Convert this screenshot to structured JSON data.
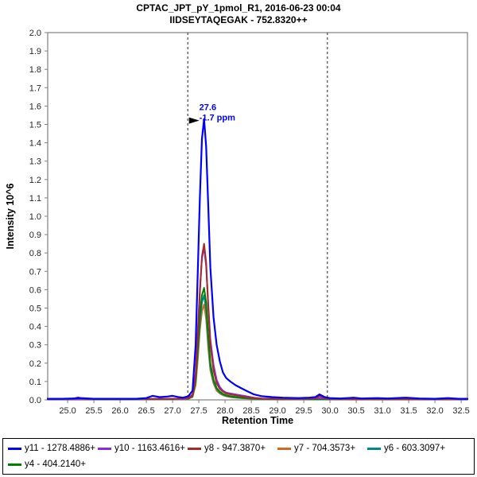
{
  "title": {
    "line1": "CPTAC_JPT_pY_1pmol_R1, 2016-06-23 00:04",
    "line2": "IIDSEYTAQEGAK - 752.8320++"
  },
  "chart_data": {
    "type": "line",
    "title": "CPTAC_JPT_pY_1pmol_R1, 2016-06-23 00:04 / IIDSEYTAQEGAK - 752.8320++",
    "xlabel": "Retention Time",
    "ylabel": "Intensity 10^6",
    "xlim": [
      24.62,
      32.62
    ],
    "ylim": [
      0,
      2.0
    ],
    "x_ticks": [
      25.0,
      25.5,
      26.0,
      26.5,
      27.0,
      27.5,
      28.0,
      28.5,
      29.0,
      29.5,
      30.0,
      30.5,
      31.0,
      31.5,
      32.0,
      32.5
    ],
    "y_ticks": [
      0.0,
      0.1,
      0.2,
      0.3,
      0.4,
      0.5,
      0.6,
      0.7,
      0.8,
      0.9,
      1.0,
      1.1,
      1.2,
      1.3,
      1.4,
      1.5,
      1.6,
      1.7,
      1.8,
      1.9,
      2.0
    ],
    "grid": false,
    "legend_position": "bottom",
    "boundaries": [
      27.29,
      29.95
    ],
    "boundary_color": "#444444",
    "annotation": {
      "rt_label": "27.6",
      "ppm_label": "-1.7 ppm",
      "x": 27.6,
      "y": 1.53,
      "color": "#0000FF",
      "arrow_color": "#000000"
    },
    "draw_order": [
      3,
      4,
      5,
      1,
      2,
      0
    ],
    "series": [
      {
        "id": "y11",
        "label": "y11 - 1278.4886+",
        "color": "#0000FF",
        "width": 2.2,
        "points": [
          [
            24.62,
            0.006
          ],
          [
            24.9,
            0.006
          ],
          [
            25.1,
            0.008
          ],
          [
            25.25,
            0.01
          ],
          [
            25.5,
            0.006
          ],
          [
            26.0,
            0.006
          ],
          [
            26.3,
            0.006
          ],
          [
            26.5,
            0.01
          ],
          [
            26.62,
            0.022
          ],
          [
            26.75,
            0.015
          ],
          [
            26.9,
            0.018
          ],
          [
            27.0,
            0.022
          ],
          [
            27.1,
            0.016
          ],
          [
            27.2,
            0.012
          ],
          [
            27.3,
            0.02
          ],
          [
            27.38,
            0.05
          ],
          [
            27.44,
            0.3
          ],
          [
            27.48,
            0.7
          ],
          [
            27.52,
            1.1
          ],
          [
            27.56,
            1.42
          ],
          [
            27.6,
            1.53
          ],
          [
            27.64,
            1.38
          ],
          [
            27.68,
            1.05
          ],
          [
            27.72,
            0.72
          ],
          [
            27.78,
            0.45
          ],
          [
            27.84,
            0.3
          ],
          [
            27.9,
            0.21
          ],
          [
            27.96,
            0.15
          ],
          [
            28.02,
            0.12
          ],
          [
            28.1,
            0.1
          ],
          [
            28.2,
            0.08
          ],
          [
            28.3,
            0.065
          ],
          [
            28.4,
            0.05
          ],
          [
            28.55,
            0.03
          ],
          [
            28.7,
            0.02
          ],
          [
            28.9,
            0.015
          ],
          [
            29.1,
            0.012
          ],
          [
            29.4,
            0.01
          ],
          [
            29.6,
            0.012
          ],
          [
            29.72,
            0.015
          ],
          [
            29.8,
            0.03
          ],
          [
            29.9,
            0.015
          ],
          [
            30.0,
            0.01
          ],
          [
            30.2,
            0.008
          ],
          [
            30.45,
            0.012
          ],
          [
            30.6,
            0.008
          ],
          [
            30.9,
            0.01
          ],
          [
            31.1,
            0.008
          ],
          [
            31.45,
            0.012
          ],
          [
            31.7,
            0.008
          ],
          [
            32.0,
            0.006
          ],
          [
            32.25,
            0.01
          ],
          [
            32.45,
            0.006
          ],
          [
            32.62,
            0.006
          ]
        ]
      },
      {
        "id": "y10",
        "label": "y10 - 1163.4616+",
        "color": "#8A2BE2",
        "width": 2,
        "points": [
          [
            24.62,
            0.004
          ],
          [
            25.5,
            0.004
          ],
          [
            26.5,
            0.005
          ],
          [
            27.0,
            0.006
          ],
          [
            27.2,
            0.005
          ],
          [
            27.3,
            0.01
          ],
          [
            27.38,
            0.03
          ],
          [
            27.44,
            0.15
          ],
          [
            27.48,
            0.38
          ],
          [
            27.52,
            0.6
          ],
          [
            27.56,
            0.77
          ],
          [
            27.6,
            0.83
          ],
          [
            27.64,
            0.73
          ],
          [
            27.68,
            0.52
          ],
          [
            27.72,
            0.33
          ],
          [
            27.78,
            0.19
          ],
          [
            27.84,
            0.11
          ],
          [
            27.9,
            0.07
          ],
          [
            27.96,
            0.05
          ],
          [
            28.02,
            0.04
          ],
          [
            28.1,
            0.035
          ],
          [
            28.2,
            0.03
          ],
          [
            28.3,
            0.025
          ],
          [
            28.4,
            0.02
          ],
          [
            28.55,
            0.012
          ],
          [
            28.7,
            0.008
          ],
          [
            29.0,
            0.006
          ],
          [
            29.5,
            0.005
          ],
          [
            29.8,
            0.01
          ],
          [
            30.0,
            0.005
          ],
          [
            30.5,
            0.004
          ],
          [
            31.0,
            0.005
          ],
          [
            31.5,
            0.004
          ],
          [
            32.0,
            0.004
          ],
          [
            32.62,
            0.004
          ]
        ]
      },
      {
        "id": "y8",
        "label": "y8 - 947.3870+",
        "color": "#A52A2A",
        "width": 2,
        "points": [
          [
            24.62,
            0.004
          ],
          [
            25.1,
            0.006
          ],
          [
            25.2,
            0.014
          ],
          [
            25.3,
            0.005
          ],
          [
            26.0,
            0.004
          ],
          [
            26.5,
            0.005
          ],
          [
            27.0,
            0.006
          ],
          [
            27.3,
            0.008
          ],
          [
            27.38,
            0.025
          ],
          [
            27.44,
            0.13
          ],
          [
            27.48,
            0.35
          ],
          [
            27.52,
            0.58
          ],
          [
            27.56,
            0.78
          ],
          [
            27.6,
            0.85
          ],
          [
            27.64,
            0.75
          ],
          [
            27.68,
            0.5
          ],
          [
            27.72,
            0.3
          ],
          [
            27.78,
            0.16
          ],
          [
            27.84,
            0.09
          ],
          [
            27.9,
            0.06
          ],
          [
            27.96,
            0.045
          ],
          [
            28.02,
            0.035
          ],
          [
            28.1,
            0.03
          ],
          [
            28.2,
            0.025
          ],
          [
            28.3,
            0.02
          ],
          [
            28.4,
            0.015
          ],
          [
            28.55,
            0.01
          ],
          [
            28.7,
            0.007
          ],
          [
            29.0,
            0.005
          ],
          [
            29.5,
            0.005
          ],
          [
            29.72,
            0.008
          ],
          [
            29.8,
            0.022
          ],
          [
            29.9,
            0.008
          ],
          [
            30.0,
            0.005
          ],
          [
            30.5,
            0.004
          ],
          [
            31.0,
            0.004
          ],
          [
            31.5,
            0.004
          ],
          [
            32.0,
            0.004
          ],
          [
            32.62,
            0.004
          ]
        ]
      },
      {
        "id": "y7",
        "label": "y7 - 704.3573+",
        "color": "#D2691E",
        "width": 2,
        "points": [
          [
            24.62,
            0.003
          ],
          [
            25.5,
            0.003
          ],
          [
            26.5,
            0.004
          ],
          [
            27.0,
            0.005
          ],
          [
            27.3,
            0.006
          ],
          [
            27.38,
            0.015
          ],
          [
            27.44,
            0.08
          ],
          [
            27.48,
            0.22
          ],
          [
            27.52,
            0.38
          ],
          [
            27.56,
            0.48
          ],
          [
            27.6,
            0.52
          ],
          [
            27.64,
            0.44
          ],
          [
            27.68,
            0.28
          ],
          [
            27.72,
            0.16
          ],
          [
            27.78,
            0.09
          ],
          [
            27.84,
            0.05
          ],
          [
            27.9,
            0.035
          ],
          [
            27.96,
            0.025
          ],
          [
            28.02,
            0.02
          ],
          [
            28.1,
            0.015
          ],
          [
            28.2,
            0.012
          ],
          [
            28.3,
            0.01
          ],
          [
            28.4,
            0.008
          ],
          [
            28.55,
            0.006
          ],
          [
            28.7,
            0.005
          ],
          [
            29.0,
            0.004
          ],
          [
            29.5,
            0.004
          ],
          [
            29.72,
            0.007
          ],
          [
            29.8,
            0.02
          ],
          [
            29.9,
            0.007
          ],
          [
            30.0,
            0.004
          ],
          [
            30.5,
            0.003
          ],
          [
            31.0,
            0.003
          ],
          [
            31.5,
            0.003
          ],
          [
            32.0,
            0.003
          ],
          [
            32.62,
            0.003
          ]
        ]
      },
      {
        "id": "y6",
        "label": "y6 - 603.3097+",
        "color": "#008B8B",
        "width": 2,
        "points": [
          [
            24.62,
            0.003
          ],
          [
            25.5,
            0.003
          ],
          [
            26.5,
            0.004
          ],
          [
            27.0,
            0.005
          ],
          [
            27.3,
            0.006
          ],
          [
            27.38,
            0.02
          ],
          [
            27.44,
            0.1
          ],
          [
            27.48,
            0.26
          ],
          [
            27.52,
            0.42
          ],
          [
            27.56,
            0.53
          ],
          [
            27.6,
            0.57
          ],
          [
            27.64,
            0.49
          ],
          [
            27.68,
            0.32
          ],
          [
            27.72,
            0.18
          ],
          [
            27.78,
            0.1
          ],
          [
            27.84,
            0.06
          ],
          [
            27.9,
            0.04
          ],
          [
            27.96,
            0.03
          ],
          [
            28.02,
            0.022
          ],
          [
            28.1,
            0.018
          ],
          [
            28.2,
            0.014
          ],
          [
            28.3,
            0.011
          ],
          [
            28.4,
            0.009
          ],
          [
            28.55,
            0.006
          ],
          [
            28.7,
            0.005
          ],
          [
            29.0,
            0.004
          ],
          [
            29.5,
            0.004
          ],
          [
            30.0,
            0.004
          ],
          [
            30.5,
            0.003
          ],
          [
            31.0,
            0.003
          ],
          [
            31.5,
            0.003
          ],
          [
            32.0,
            0.003
          ],
          [
            32.62,
            0.003
          ]
        ]
      },
      {
        "id": "y4",
        "label": "y4 - 404.2140+",
        "color": "#008000",
        "width": 2,
        "points": [
          [
            24.62,
            0.003
          ],
          [
            25.5,
            0.003
          ],
          [
            26.5,
            0.004
          ],
          [
            27.0,
            0.005
          ],
          [
            27.3,
            0.007
          ],
          [
            27.38,
            0.02
          ],
          [
            27.44,
            0.11
          ],
          [
            27.48,
            0.28
          ],
          [
            27.52,
            0.46
          ],
          [
            27.56,
            0.57
          ],
          [
            27.6,
            0.61
          ],
          [
            27.64,
            0.53
          ],
          [
            27.68,
            0.35
          ],
          [
            27.72,
            0.2
          ],
          [
            27.78,
            0.11
          ],
          [
            27.84,
            0.065
          ],
          [
            27.9,
            0.045
          ],
          [
            27.96,
            0.032
          ],
          [
            28.02,
            0.025
          ],
          [
            28.1,
            0.02
          ],
          [
            28.2,
            0.016
          ],
          [
            28.3,
            0.012
          ],
          [
            28.4,
            0.01
          ],
          [
            28.55,
            0.007
          ],
          [
            28.7,
            0.005
          ],
          [
            29.0,
            0.004
          ],
          [
            29.5,
            0.004
          ],
          [
            30.0,
            0.004
          ],
          [
            30.5,
            0.003
          ],
          [
            31.0,
            0.003
          ],
          [
            31.5,
            0.003
          ],
          [
            32.0,
            0.003
          ],
          [
            32.62,
            0.003
          ]
        ]
      }
    ]
  }
}
